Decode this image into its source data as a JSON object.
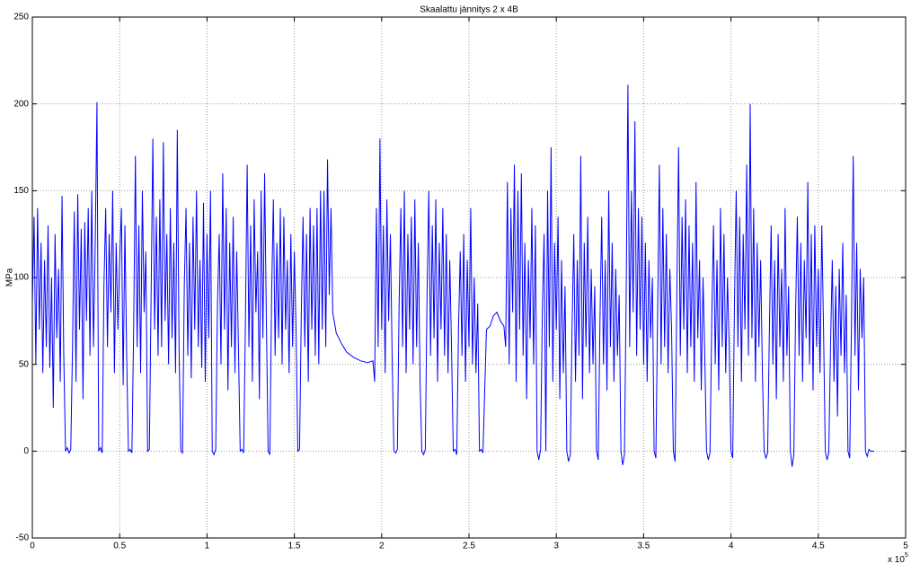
{
  "chart_data": {
    "type": "line",
    "title": "Skaalattu jännitys 2 x 4B",
    "y_label": "MPa",
    "x_multiplier": {
      "base": "x 10",
      "exponent": "5"
    },
    "color": "#0000ff",
    "grid": true,
    "xlim": [
      0,
      5
    ],
    "xticks": [
      0,
      0.5,
      1,
      1.5,
      2,
      2.5,
      3,
      3.5,
      4,
      4.5,
      5
    ],
    "ylim": [
      -50,
      250
    ],
    "yticks": [
      -50,
      0,
      50,
      100,
      150,
      200,
      250
    ],
    "x": [
      0,
      0.01,
      0.02,
      0.03,
      0.04,
      0.05,
      0.06,
      0.07,
      0.08,
      0.09,
      0.1,
      0.11,
      0.12,
      0.13,
      0.14,
      0.15,
      0.16,
      0.17,
      0.18,
      0.19,
      0.2,
      0.21,
      0.22,
      0.23,
      0.24,
      0.25,
      0.26,
      0.27,
      0.28,
      0.29,
      0.3,
      0.31,
      0.32,
      0.33,
      0.34,
      0.35,
      0.36,
      0.37,
      0.38,
      0.39,
      0.4,
      0.41,
      0.42,
      0.43,
      0.44,
      0.45,
      0.46,
      0.47,
      0.48,
      0.49,
      0.5,
      0.51,
      0.52,
      0.53,
      0.54,
      0.55,
      0.56,
      0.57,
      0.58,
      0.59,
      0.6,
      0.61,
      0.62,
      0.63,
      0.64,
      0.65,
      0.66,
      0.67,
      0.68,
      0.69,
      0.7,
      0.71,
      0.72,
      0.73,
      0.74,
      0.75,
      0.76,
      0.77,
      0.78,
      0.79,
      0.8,
      0.81,
      0.82,
      0.83,
      0.84,
      0.85,
      0.86,
      0.87,
      0.88,
      0.89,
      0.9,
      0.91,
      0.92,
      0.93,
      0.94,
      0.95,
      0.96,
      0.97,
      0.98,
      0.99,
      1,
      1.01,
      1.02,
      1.03,
      1.04,
      1.05,
      1.06,
      1.07,
      1.08,
      1.09,
      1.1,
      1.11,
      1.12,
      1.13,
      1.14,
      1.15,
      1.16,
      1.17,
      1.18,
      1.19,
      1.2,
      1.21,
      1.22,
      1.23,
      1.24,
      1.25,
      1.26,
      1.27,
      1.28,
      1.29,
      1.3,
      1.31,
      1.32,
      1.33,
      1.34,
      1.35,
      1.36,
      1.37,
      1.38,
      1.39,
      1.4,
      1.41,
      1.42,
      1.43,
      1.44,
      1.45,
      1.46,
      1.47,
      1.48,
      1.49,
      1.5,
      1.51,
      1.52,
      1.53,
      1.54,
      1.55,
      1.56,
      1.57,
      1.58,
      1.59,
      1.6,
      1.61,
      1.62,
      1.63,
      1.64,
      1.65,
      1.66,
      1.67,
      1.68,
      1.69,
      1.7,
      1.71,
      1.72,
      1.74,
      1.77,
      1.8,
      1.84,
      1.88,
      1.92,
      1.95,
      1.96,
      1.97,
      1.98,
      1.99,
      2,
      2.01,
      2.02,
      2.03,
      2.04,
      2.05,
      2.06,
      2.07,
      2.08,
      2.09,
      2.1,
      2.11,
      2.12,
      2.13,
      2.14,
      2.15,
      2.16,
      2.17,
      2.18,
      2.19,
      2.2,
      2.21,
      2.22,
      2.23,
      2.24,
      2.25,
      2.26,
      2.27,
      2.28,
      2.29,
      2.3,
      2.31,
      2.32,
      2.33,
      2.34,
      2.35,
      2.36,
      2.37,
      2.38,
      2.39,
      2.4,
      2.41,
      2.42,
      2.43,
      2.44,
      2.45,
      2.46,
      2.47,
      2.48,
      2.49,
      2.5,
      2.51,
      2.52,
      2.53,
      2.54,
      2.55,
      2.56,
      2.57,
      2.58,
      2.6,
      2.62,
      2.64,
      2.66,
      2.68,
      2.7,
      2.71,
      2.72,
      2.73,
      2.74,
      2.75,
      2.76,
      2.77,
      2.78,
      2.79,
      2.8,
      2.81,
      2.82,
      2.83,
      2.84,
      2.85,
      2.86,
      2.87,
      2.88,
      2.89,
      2.9,
      2.91,
      2.92,
      2.93,
      2.94,
      2.95,
      2.96,
      2.97,
      2.98,
      2.99,
      3,
      3.01,
      3.02,
      3.03,
      3.04,
      3.05,
      3.06,
      3.07,
      3.08,
      3.09,
      3.1,
      3.11,
      3.12,
      3.13,
      3.14,
      3.15,
      3.16,
      3.17,
      3.18,
      3.19,
      3.2,
      3.21,
      3.22,
      3.23,
      3.24,
      3.25,
      3.26,
      3.27,
      3.28,
      3.29,
      3.3,
      3.31,
      3.32,
      3.33,
      3.34,
      3.35,
      3.36,
      3.37,
      3.38,
      3.39,
      3.4,
      3.41,
      3.42,
      3.43,
      3.44,
      3.45,
      3.46,
      3.47,
      3.48,
      3.49,
      3.5,
      3.51,
      3.52,
      3.53,
      3.54,
      3.55,
      3.56,
      3.57,
      3.58,
      3.59,
      3.6,
      3.61,
      3.62,
      3.63,
      3.64,
      3.65,
      3.66,
      3.67,
      3.68,
      3.69,
      3.7,
      3.71,
      3.72,
      3.73,
      3.74,
      3.75,
      3.76,
      3.77,
      3.78,
      3.79,
      3.8,
      3.81,
      3.82,
      3.83,
      3.84,
      3.85,
      3.86,
      3.87,
      3.88,
      3.89,
      3.9,
      3.91,
      3.92,
      3.93,
      3.94,
      3.95,
      3.96,
      3.97,
      3.98,
      3.99,
      4,
      4.01,
      4.02,
      4.03,
      4.04,
      4.05,
      4.06,
      4.07,
      4.08,
      4.09,
      4.1,
      4.11,
      4.12,
      4.13,
      4.14,
      4.15,
      4.16,
      4.17,
      4.18,
      4.19,
      4.2,
      4.21,
      4.22,
      4.23,
      4.24,
      4.25,
      4.26,
      4.27,
      4.28,
      4.29,
      4.3,
      4.31,
      4.32,
      4.33,
      4.34,
      4.35,
      4.36,
      4.37,
      4.38,
      4.39,
      4.4,
      4.41,
      4.42,
      4.43,
      4.44,
      4.45,
      4.46,
      4.47,
      4.48,
      4.49,
      4.5,
      4.51,
      4.52,
      4.53,
      4.54,
      4.55,
      4.56,
      4.57,
      4.58,
      4.59,
      4.6,
      4.61,
      4.62,
      4.63,
      4.64,
      4.65,
      4.66,
      4.67,
      4.68,
      4.69,
      4.7,
      4.71,
      4.72,
      4.73,
      4.74,
      4.75,
      4.76,
      4.77,
      4.78,
      4.79,
      4.8,
      4.82
    ],
    "values": [
      85,
      135,
      50,
      140,
      70,
      120,
      45,
      110,
      60,
      130,
      48,
      100,
      25,
      125,
      65,
      105,
      40,
      147,
      55,
      0,
      2,
      -1,
      1,
      60,
      138,
      40,
      148,
      70,
      128,
      30,
      132,
      75,
      140,
      55,
      150,
      60,
      118,
      201,
      0,
      2,
      -1,
      95,
      140,
      60,
      125,
      80,
      150,
      45,
      120,
      70,
      110,
      140,
      38,
      130,
      55,
      0,
      1,
      -1,
      70,
      170,
      60,
      130,
      45,
      150,
      80,
      115,
      0,
      1,
      90,
      180,
      70,
      135,
      55,
      145,
      60,
      178,
      75,
      125,
      50,
      140,
      65,
      120,
      45,
      185,
      60,
      0,
      -1,
      95,
      140,
      55,
      120,
      42,
      135,
      70,
      150,
      60,
      110,
      48,
      143,
      40,
      125,
      65,
      150,
      0,
      -2,
      1,
      85,
      125,
      50,
      160,
      70,
      140,
      35,
      120,
      60,
      135,
      45,
      115,
      60,
      0,
      1,
      -1,
      75,
      165,
      60,
      130,
      40,
      145,
      80,
      115,
      30,
      150,
      65,
      160,
      75,
      0,
      -2,
      90,
      145,
      55,
      120,
      65,
      140,
      50,
      135,
      70,
      110,
      45,
      125,
      60,
      115,
      70,
      0,
      1,
      80,
      135,
      60,
      125,
      40,
      140,
      70,
      130,
      55,
      140,
      50,
      150,
      70,
      150,
      60,
      168,
      90,
      140,
      80,
      68,
      62,
      57,
      54,
      52,
      51,
      52,
      40,
      140,
      60,
      180,
      70,
      130,
      45,
      145,
      75,
      125,
      55,
      0,
      -1,
      1,
      85,
      140,
      60,
      150,
      45,
      125,
      70,
      135,
      50,
      145,
      60,
      120,
      40,
      0,
      -2,
      1,
      90,
      150,
      55,
      130,
      65,
      145,
      40,
      120,
      70,
      140,
      55,
      125,
      45,
      110,
      60,
      0,
      1,
      -2,
      70,
      115,
      55,
      125,
      40,
      110,
      60,
      140,
      50,
      100,
      45,
      85,
      0,
      1,
      -1,
      70,
      72,
      78,
      80,
      75,
      72,
      60,
      155,
      50,
      140,
      80,
      165,
      40,
      150,
      70,
      160,
      55,
      120,
      30,
      110,
      65,
      140,
      50,
      130,
      0,
      -5,
      1,
      80,
      125,
      0,
      150,
      60,
      175,
      40,
      120,
      70,
      135,
      30,
      110,
      45,
      95,
      0,
      -6,
      -2,
      70,
      125,
      40,
      110,
      55,
      170,
      30,
      120,
      60,
      135,
      45,
      105,
      50,
      95,
      0,
      -5,
      75,
      135,
      50,
      110,
      35,
      150,
      60,
      120,
      40,
      105,
      55,
      90,
      0,
      -8,
      -2,
      90,
      211,
      60,
      150,
      80,
      190,
      55,
      140,
      70,
      135,
      50,
      120,
      40,
      110,
      65,
      100,
      0,
      -4,
      80,
      165,
      50,
      140,
      60,
      125,
      45,
      105,
      70,
      0,
      -6,
      90,
      175,
      55,
      135,
      70,
      145,
      45,
      130,
      60,
      120,
      40,
      155,
      65,
      110,
      35,
      100,
      55,
      0,
      -5,
      -1,
      75,
      130,
      50,
      110,
      35,
      140,
      60,
      125,
      45,
      100,
      60,
      0,
      -4,
      85,
      150,
      60,
      135,
      40,
      125,
      70,
      165,
      55,
      200,
      65,
      140,
      40,
      120,
      60,
      110,
      45,
      0,
      -4,
      -1,
      70,
      130,
      50,
      110,
      30,
      125,
      60,
      105,
      40,
      140,
      55,
      95,
      0,
      -9,
      -2,
      80,
      135,
      55,
      120,
      40,
      110,
      65,
      155,
      50,
      125,
      35,
      130,
      60,
      105,
      45,
      130,
      70,
      0,
      -5,
      -1,
      60,
      110,
      40,
      95,
      20,
      105,
      55,
      120,
      45,
      90,
      0,
      -4,
      75,
      170,
      55,
      120,
      35,
      105,
      65,
      100,
      0,
      -3,
      1,
      0,
      0
    ]
  }
}
